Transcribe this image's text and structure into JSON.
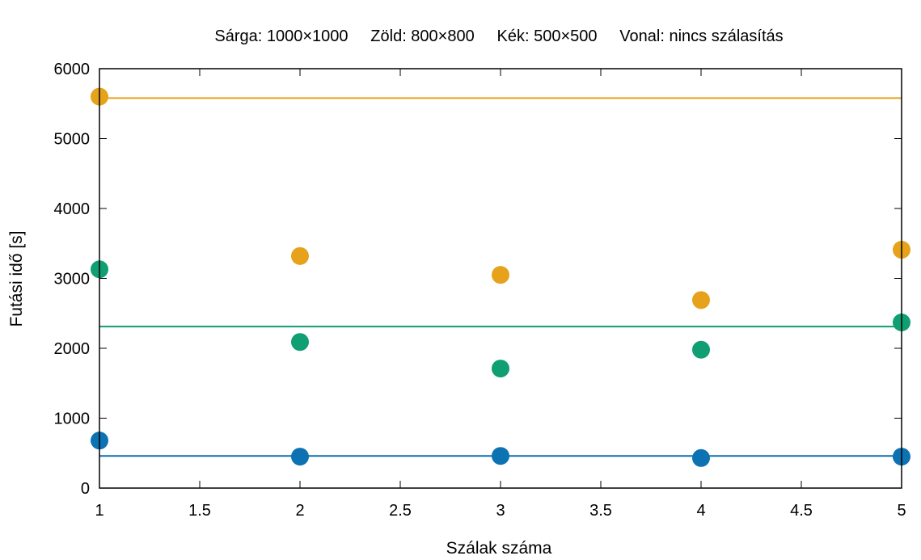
{
  "chart_data": {
    "type": "scatter",
    "title": "",
    "legend_text": "Sárga: 1000×1000     Zöld: 800×800     Kék: 500×500     Vonal: nincs szálasítás",
    "xlabel": "Szálak száma",
    "ylabel": "Futási idő [s]",
    "xlim": [
      1,
      5
    ],
    "ylim": [
      0,
      6000
    ],
    "x_ticks": [
      "1",
      "1.5",
      "2",
      "2.5",
      "3",
      "3.5",
      "4",
      "4.5",
      "5"
    ],
    "y_ticks": [
      "0",
      "1000",
      "2000",
      "3000",
      "4000",
      "5000",
      "6000"
    ],
    "grid": false,
    "legend_position": "top",
    "series": [
      {
        "color": "#e6a21a",
        "x": [
          1,
          2,
          3,
          4,
          5
        ],
        "y": [
          5600,
          3320,
          3050,
          2690,
          3410
        ],
        "reference_line": 5580
      },
      {
        "color": "#109e73",
        "x": [
          1,
          2,
          3,
          4,
          5
        ],
        "y": [
          3130,
          2090,
          1710,
          1980,
          2370
        ],
        "reference_line": 2310
      },
      {
        "color": "#0c72b2",
        "x": [
          1,
          2,
          3,
          4,
          5
        ],
        "y": [
          680,
          450,
          460,
          430,
          450
        ],
        "reference_line": 460
      }
    ]
  }
}
